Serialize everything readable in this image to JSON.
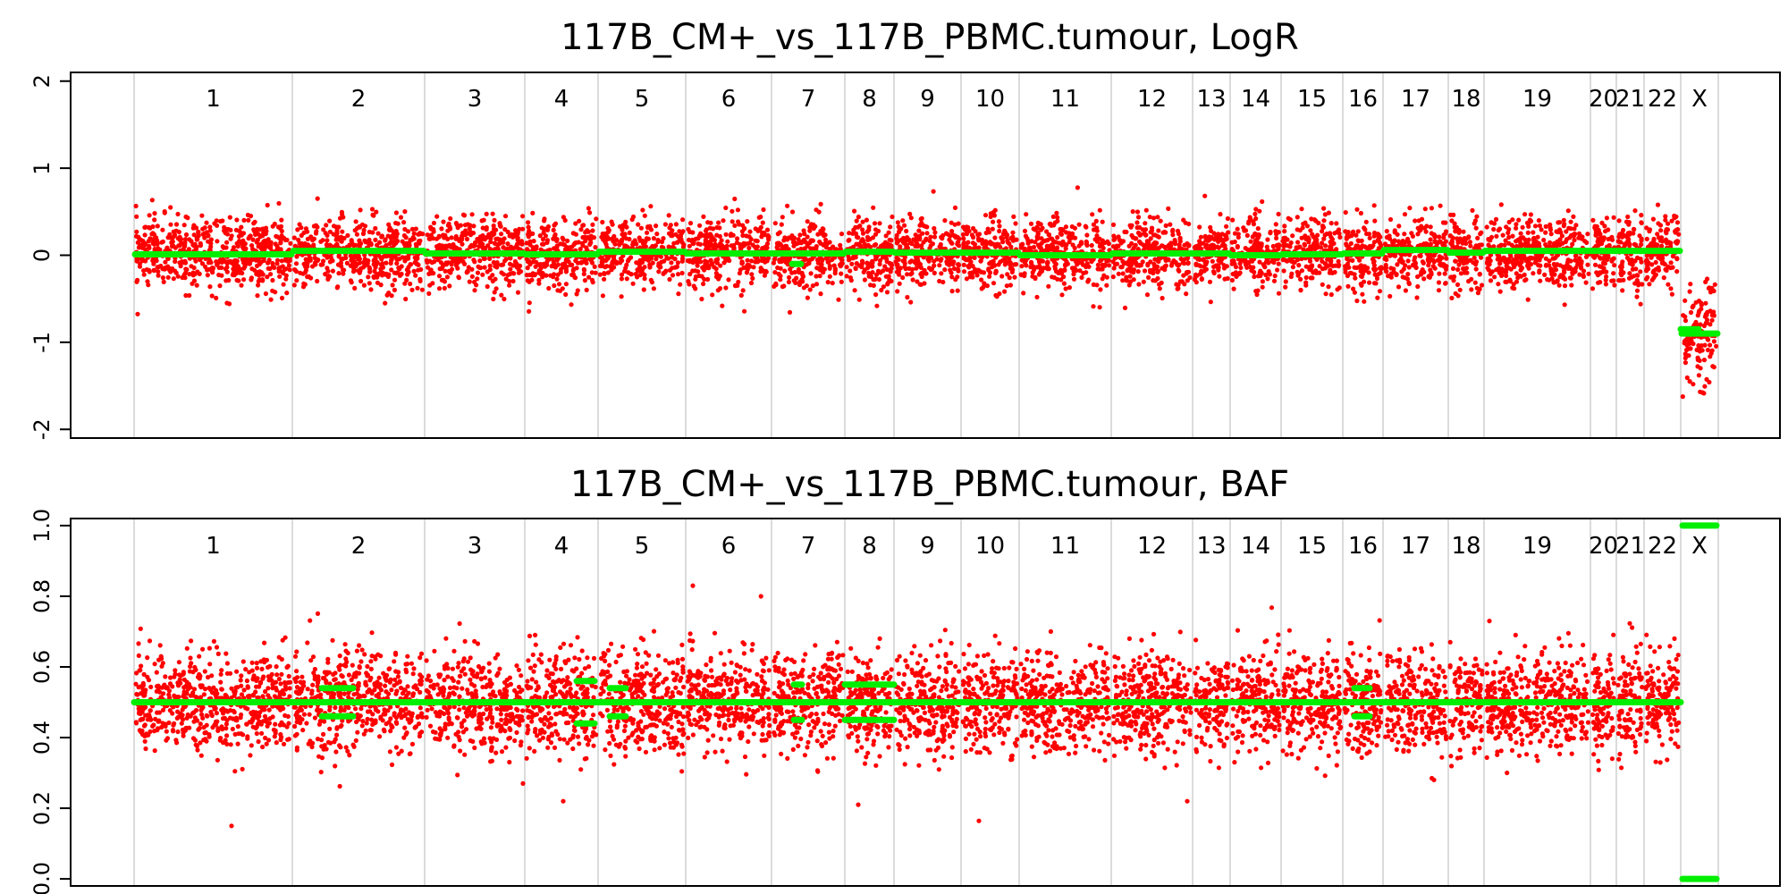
{
  "chart_data": [
    {
      "type": "scatter",
      "title": "117B_CM+_vs_117B_PBMC.tumour, LogR",
      "xlabel": "",
      "ylabel": "",
      "ylim": [
        -2.1,
        2.1
      ],
      "yticks": [
        -2,
        -1,
        0,
        1,
        2
      ],
      "ytick_labels": [
        "-2",
        "-1",
        "0",
        "1",
        "2"
      ],
      "grid": false,
      "point_color": "#ff0000",
      "segment_color": "#00ee00",
      "chromosomes": [
        "1",
        "2",
        "3",
        "4",
        "5",
        "6",
        "7",
        "8",
        "9",
        "10",
        "11",
        "12",
        "13",
        "14",
        "15",
        "16",
        "17",
        "18",
        "19",
        "20",
        "21",
        "22",
        "X"
      ],
      "series": [
        {
          "values_summary": "Red points: per-probe LogR, mostly between -0.5 and 0.6 on autosomes; chrX points between -0.5 and -1.9",
          "segments": [
            {
              "chromosome": "1",
              "value": 0.01
            },
            {
              "chromosome": "2",
              "value": 0.05
            },
            {
              "chromosome": "3",
              "value": 0.02
            },
            {
              "chromosome": "4",
              "value": 0.01
            },
            {
              "chromosome": "5",
              "value": 0.04
            },
            {
              "chromosome": "6",
              "value": 0.02
            },
            {
              "chromosome": "7",
              "value": 0.02
            },
            {
              "chromosome": "8",
              "value": 0.04
            },
            {
              "chromosome": "9",
              "value": 0.03
            },
            {
              "chromosome": "10",
              "value": 0.03
            },
            {
              "chromosome": "11",
              "value": 0.0
            },
            {
              "chromosome": "12",
              "value": 0.02
            },
            {
              "chromosome": "13",
              "value": 0.02
            },
            {
              "chromosome": "14",
              "value": 0.0
            },
            {
              "chromosome": "15",
              "value": 0.01
            },
            {
              "chromosome": "16",
              "value": 0.02
            },
            {
              "chromosome": "17",
              "value": 0.06
            },
            {
              "chromosome": "18",
              "value": 0.03
            },
            {
              "chromosome": "19",
              "value": 0.05
            },
            {
              "chromosome": "20",
              "value": 0.05
            },
            {
              "chromosome": "21",
              "value": 0.05
            },
            {
              "chromosome": "22",
              "value": 0.05
            },
            {
              "chromosome": "X",
              "value": -0.9
            }
          ]
        }
      ]
    },
    {
      "type": "scatter",
      "title": "117B_CM+_vs_117B_PBMC.tumour, BAF",
      "xlabel": "",
      "ylabel": "",
      "ylim": [
        -0.02,
        1.02
      ],
      "yticks": [
        0.0,
        0.2,
        0.4,
        0.6,
        0.8,
        1.0
      ],
      "ytick_labels": [
        "0.0",
        "0.2",
        "0.4",
        "0.6",
        "0.8",
        "1.0"
      ],
      "grid": false,
      "point_color": "#ff0000",
      "segment_color": "#00ee00",
      "chromosomes": [
        "1",
        "2",
        "3",
        "4",
        "5",
        "6",
        "7",
        "8",
        "9",
        "10",
        "11",
        "12",
        "13",
        "14",
        "15",
        "16",
        "17",
        "18",
        "19",
        "20",
        "21",
        "22",
        "X"
      ],
      "series": [
        {
          "values_summary": "Red points: heterozygous BAF values, mostly between 0.35 and 0.65; outliers at about 0.15, 0.21, 0.22, 0.28, 0.73, 0.83",
          "segments": [
            {
              "chromosome": "1-22",
              "value": 0.5
            },
            {
              "chromosome": "2",
              "value": 0.54
            },
            {
              "chromosome": "2",
              "value": 0.46
            },
            {
              "chromosome": "4",
              "value": 0.56
            },
            {
              "chromosome": "4",
              "value": 0.44
            },
            {
              "chromosome": "5",
              "value": 0.54
            },
            {
              "chromosome": "5",
              "value": 0.46
            },
            {
              "chromosome": "7",
              "value": 0.55
            },
            {
              "chromosome": "7",
              "value": 0.45
            },
            {
              "chromosome": "8",
              "value": 0.55
            },
            {
              "chromosome": "8",
              "value": 0.45
            },
            {
              "chromosome": "16",
              "value": 0.54
            },
            {
              "chromosome": "16",
              "value": 0.46
            },
            {
              "chromosome": "X",
              "value": 1.0
            },
            {
              "chromosome": "X",
              "value": 0.0
            }
          ]
        }
      ]
    }
  ]
}
